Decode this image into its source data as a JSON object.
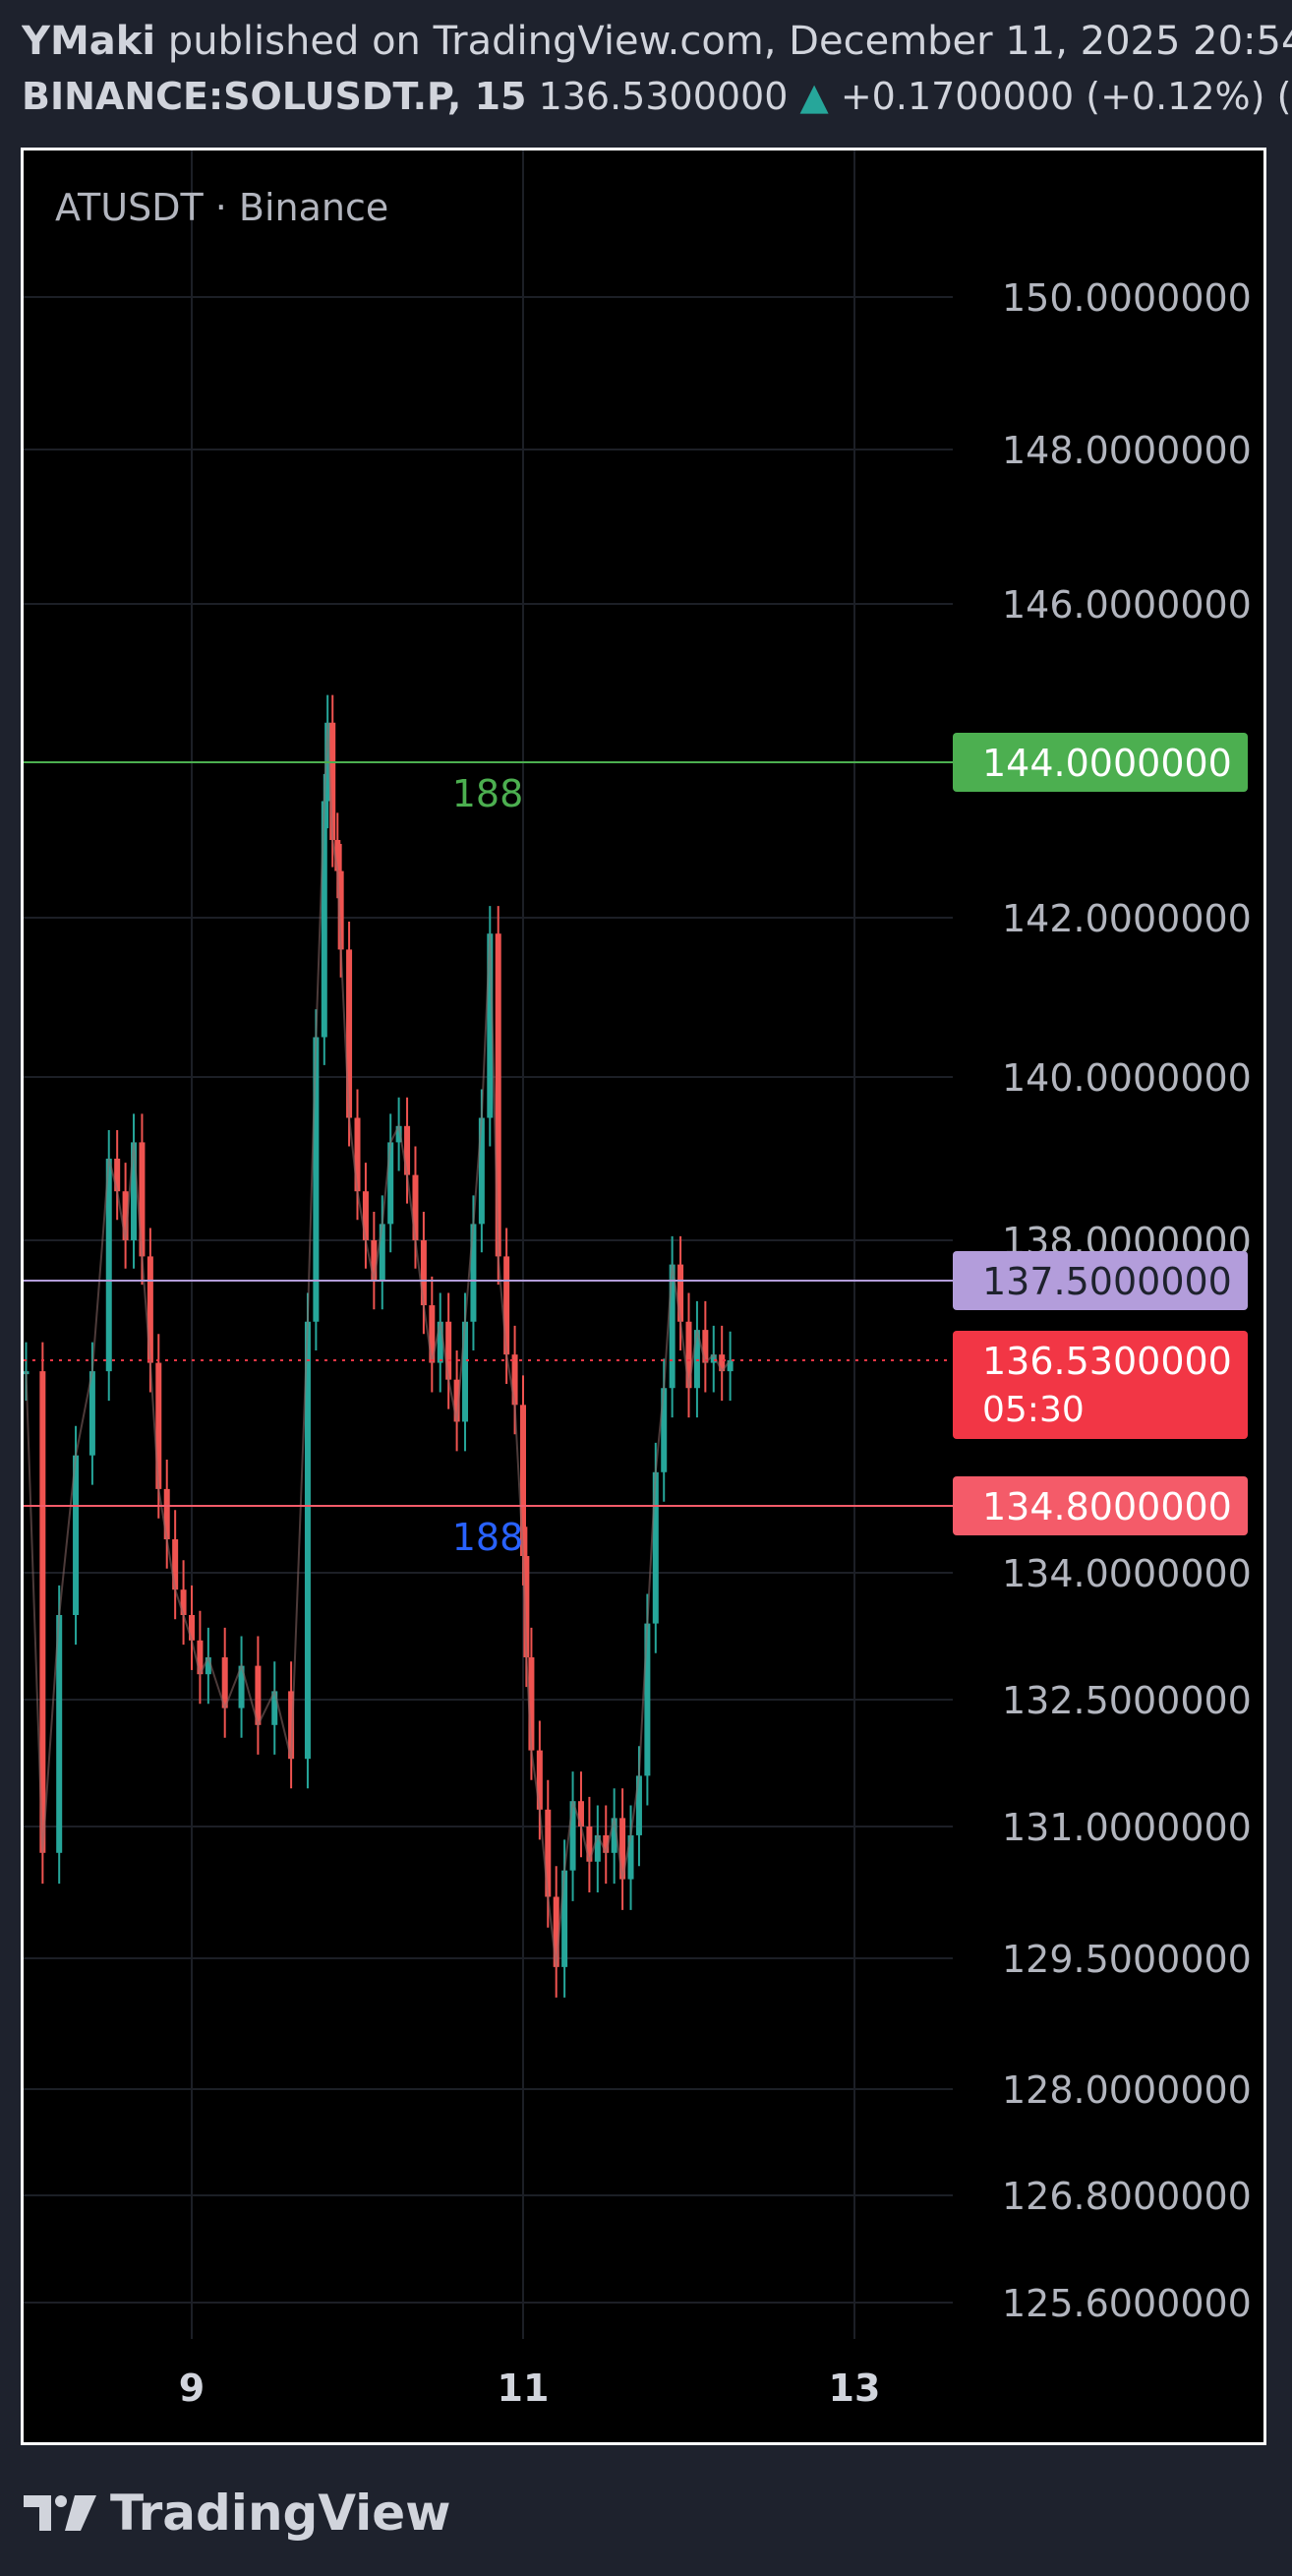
{
  "header": {
    "author": "YMaki",
    "published_text": "published on TradingView.com, December 11, 2025 20:54:",
    "symbol": "BINANCE:SOLUSDT.P, 15",
    "price": "136.5300000",
    "change_arrow": "▲",
    "change": "+0.1700000 (+0.12%)",
    "trailing": "("
  },
  "footer": {
    "brand": "TradingView",
    "logo_icon": "tradingview-logo-icon"
  },
  "colors": {
    "background": "#1e222d",
    "chart_bg": "#000000",
    "up": "#26a69a",
    "down": "#ef5350",
    "green_line": "#4caf50",
    "purple_line": "#b39ddb",
    "red_line": "#f45b69",
    "price_label": "#f23645",
    "blue_text": "#2962ff"
  },
  "chart_data": {
    "type": "line",
    "title": "ATUSDT · Binance",
    "xlabel": "",
    "ylabel": "",
    "x_ticks": [
      "9",
      "11",
      "13"
    ],
    "x_tick_positions": [
      9,
      11,
      13
    ],
    "xlim": [
      8,
      13.6
    ],
    "y_ticks": [
      {
        "value": 150,
        "label": "150.0000000"
      },
      {
        "value": 148,
        "label": "148.0000000"
      },
      {
        "value": 146,
        "label": "146.0000000"
      },
      {
        "value": 142,
        "label": "142.0000000"
      },
      {
        "value": 140,
        "label": "140.0000000"
      },
      {
        "value": 138,
        "label": "138.0000000"
      },
      {
        "value": 134,
        "label": "134.0000000"
      },
      {
        "value": 132.5,
        "label": "132.5000000"
      },
      {
        "value": 131,
        "label": "131.0000000"
      },
      {
        "value": 129.5,
        "label": "129.5000000"
      },
      {
        "value": 128,
        "label": "128.0000000"
      },
      {
        "value": 126.8,
        "label": "126.8000000"
      },
      {
        "value": 125.6,
        "label": "125.6000000"
      }
    ],
    "horizontal_lines": [
      {
        "value": 144.0,
        "label": "144.0000000",
        "color": "#4caf50",
        "annotation": "188",
        "annotation_color": "#4caf50"
      },
      {
        "value": 137.5,
        "label": "137.5000000",
        "color": "#b39ddb"
      },
      {
        "value": 134.8,
        "label": "134.8000000",
        "color": "#f45b69",
        "annotation": "188",
        "annotation_color": "#2962ff"
      }
    ],
    "current_price": {
      "value": 136.53,
      "label": "136.5300000",
      "countdown": "05:30"
    },
    "series": [
      {
        "x": [
          8.0,
          8.1,
          8.2,
          8.3,
          8.4,
          8.5,
          8.55,
          8.6,
          8.65,
          8.7,
          8.75,
          8.8,
          8.85,
          8.9,
          8.95,
          9.0,
          9.05,
          9.1,
          9.2,
          9.3,
          9.4,
          9.5,
          9.6,
          9.7,
          9.75,
          9.8,
          9.82,
          9.85,
          9.88,
          9.9,
          9.95,
          10.0,
          10.05,
          10.1,
          10.15,
          10.2,
          10.25,
          10.3,
          10.35,
          10.4,
          10.45,
          10.5,
          10.55,
          10.6,
          10.65,
          10.7,
          10.75,
          10.8,
          10.85,
          10.9,
          10.95,
          11.0,
          11.02,
          11.05,
          11.1,
          11.15,
          11.2,
          11.25,
          11.3,
          11.35,
          11.4,
          11.45,
          11.5,
          11.55,
          11.6,
          11.65,
          11.7,
          11.75,
          11.8,
          11.85,
          11.9,
          11.95,
          12.0,
          12.05,
          12.1,
          12.15,
          12.2,
          12.25
        ],
        "values": [
          136.4,
          130.7,
          133.5,
          135.4,
          136.4,
          139.0,
          138.6,
          138.0,
          139.2,
          137.8,
          136.5,
          135.0,
          134.4,
          133.8,
          133.5,
          133.2,
          132.8,
          133.0,
          132.4,
          132.9,
          132.2,
          132.6,
          131.8,
          137.0,
          140.5,
          143.5,
          144.5,
          143.0,
          142.6,
          141.6,
          139.5,
          138.6,
          138.0,
          137.5,
          138.2,
          139.2,
          139.4,
          138.8,
          138.0,
          137.2,
          136.5,
          137.0,
          136.3,
          135.8,
          137.0,
          138.2,
          139.5,
          141.8,
          137.8,
          136.6,
          136.0,
          134.2,
          133.0,
          131.9,
          131.2,
          130.2,
          129.4,
          130.5,
          131.3,
          131.0,
          130.6,
          130.9,
          130.7,
          131.1,
          130.4,
          130.9,
          131.6,
          133.4,
          135.2,
          136.2,
          137.7,
          137.0,
          136.2,
          136.9,
          136.5,
          136.6,
          136.4,
          136.53
        ]
      }
    ],
    "ylim": [
      125.0,
      151.2
    ],
    "grid": true,
    "legend": "top-left"
  }
}
